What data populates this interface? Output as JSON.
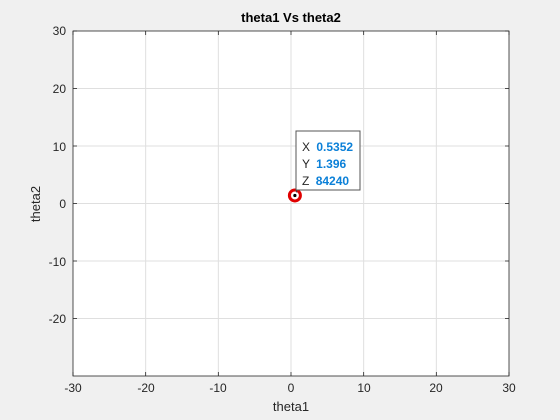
{
  "chart_data": {
    "type": "contour",
    "title": "theta1 Vs theta2",
    "xlabel": "theta1",
    "ylabel": "theta2",
    "xlim": [
      -30,
      30
    ],
    "ylim": [
      -30,
      30
    ],
    "grid": true,
    "x_ticks": [
      "-30",
      "-20",
      "-10",
      "0",
      "10",
      "20",
      "30"
    ],
    "y_ticks": [
      "30",
      "20",
      "10",
      "0",
      "-10",
      "-20"
    ],
    "colormap": [
      "#3e26a8",
      "#4653d9",
      "#2f86f0",
      "#15b0cf",
      "#1fc48e",
      "#8dc23f",
      "#e5b92e",
      "#f9e41c"
    ],
    "minimum": {
      "x": 0.5352,
      "y": 1.396,
      "z": 84240
    },
    "datatip": {
      "x_label": "X",
      "x_value": "0.5352",
      "y_label": "Y",
      "y_value": "1.396",
      "z_label": "Z",
      "z_value": "84240",
      "value_color": "#0b80d8"
    }
  }
}
